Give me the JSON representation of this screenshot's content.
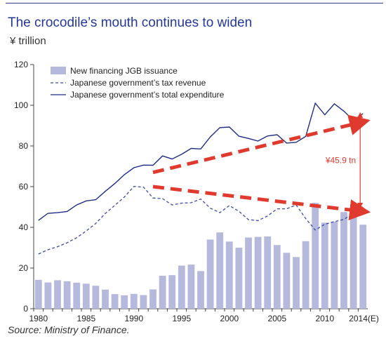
{
  "title": "The crocodile’s mouth continues to widen",
  "unit_label": "¥ trillion",
  "source": "Source: Ministry of Finance.",
  "chart_data": {
    "type": "bar",
    "x": [
      1980,
      1981,
      1982,
      1983,
      1984,
      1985,
      1986,
      1987,
      1988,
      1989,
      1990,
      1991,
      1992,
      1993,
      1994,
      1995,
      1996,
      1997,
      1998,
      1999,
      2000,
      2001,
      2002,
      2003,
      2004,
      2005,
      2006,
      2007,
      2008,
      2009,
      2010,
      2011,
      2012,
      2013,
      2014
    ],
    "x_tick_labels": [
      "1980",
      "1985",
      "1990",
      "1995",
      "2000",
      "2005",
      "2010",
      "2014(E)"
    ],
    "x_tick_years": [
      1980,
      1985,
      1990,
      1995,
      2000,
      2005,
      2010,
      2014
    ],
    "ylim": [
      0,
      120
    ],
    "y_ticks": [
      0,
      20,
      40,
      60,
      80,
      100,
      120
    ],
    "legend_position": "top-left",
    "series": [
      {
        "name": "New financing JGB issuance",
        "kind": "bar",
        "color": "#b5b9dc",
        "values": [
          14.2,
          12.9,
          14.0,
          13.5,
          12.8,
          12.3,
          11.3,
          9.4,
          7.2,
          6.6,
          7.3,
          6.7,
          9.5,
          16.2,
          16.5,
          21.2,
          21.7,
          18.5,
          34.0,
          37.5,
          33.0,
          30.0,
          35.0,
          35.3,
          35.5,
          31.3,
          27.5,
          25.4,
          33.2,
          52.0,
          42.3,
          42.8,
          47.5,
          45.0,
          41.3
        ]
      },
      {
        "name": "Japanese government’s tax revenue",
        "kind": "line",
        "style": "dashed",
        "color": "#3c4aa8",
        "values": [
          26.9,
          29.0,
          30.5,
          32.4,
          34.9,
          38.2,
          41.9,
          46.8,
          50.8,
          54.9,
          60.1,
          59.8,
          54.4,
          54.1,
          51.0,
          51.9,
          52.1,
          53.9,
          49.4,
          47.2,
          50.7,
          47.9,
          43.8,
          43.3,
          45.6,
          49.1,
          49.1,
          51.0,
          44.3,
          38.7,
          41.5,
          42.8,
          43.9,
          47.0,
          50.0
        ]
      },
      {
        "name": "Japanese government’s total expenditure",
        "kind": "line",
        "style": "solid",
        "color": "#1f2d86",
        "values": [
          43.4,
          46.9,
          47.2,
          47.8,
          51.0,
          53.0,
          53.6,
          57.7,
          61.5,
          65.9,
          69.3,
          70.6,
          70.5,
          75.1,
          73.6,
          75.9,
          78.8,
          78.5,
          84.4,
          89.0,
          89.3,
          84.8,
          83.7,
          82.4,
          84.9,
          85.5,
          81.4,
          81.8,
          84.7,
          101.0,
          95.3,
          100.7,
          97.1,
          92.6,
          95.9
        ]
      }
    ],
    "annotations": {
      "gap_label": "¥45.9 tn",
      "gap_year": 2014,
      "gap_from": 50.0,
      "gap_to": 95.9,
      "arrow_color": "#e03a2e",
      "arrows": [
        {
          "from": [
            1992,
            67.0
          ],
          "to": [
            2014,
            91.5
          ]
        },
        {
          "from": [
            1992,
            60.0
          ],
          "to": [
            2014,
            48.0
          ]
        }
      ]
    }
  }
}
